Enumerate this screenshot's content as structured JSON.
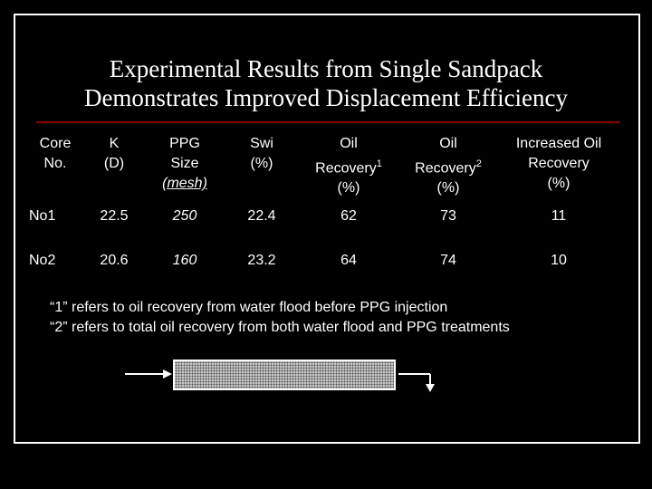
{
  "title_line1": "Experimental Results from Single Sandpack",
  "title_line2": "Demonstrates Improved Displacement Efficiency",
  "headers": [
    {
      "main": "Core",
      "sub": "No.",
      "sup": "",
      "unit": ""
    },
    {
      "main": "K",
      "sub": "(D)",
      "sup": "",
      "unit": ""
    },
    {
      "main": "PPG",
      "sub": "Size",
      "sup": "",
      "unit": "(mesh)"
    },
    {
      "main": "Swi",
      "sub": "(%)",
      "sup": "",
      "unit": ""
    },
    {
      "main": "Oil",
      "sub": "Recovery",
      "sup": "1",
      "unit": "(%)"
    },
    {
      "main": "Oil",
      "sub": "Recovery",
      "sup": "2",
      "unit": "(%)"
    },
    {
      "main": "Increased Oil",
      "sub": "Recovery",
      "sup": "",
      "unit": "(%)"
    }
  ],
  "rows": [
    [
      "No1",
      "22.5",
      "250",
      "22.4",
      "62",
      "73",
      "11"
    ],
    [
      "No2",
      "20.6",
      "160",
      "23.2",
      "64",
      "74",
      "10"
    ]
  ],
  "note1": "“1” refers to oil recovery from water flood before PPG injection",
  "note2": "“2” refers to total oil recovery from both water flood and PPG treatments"
}
